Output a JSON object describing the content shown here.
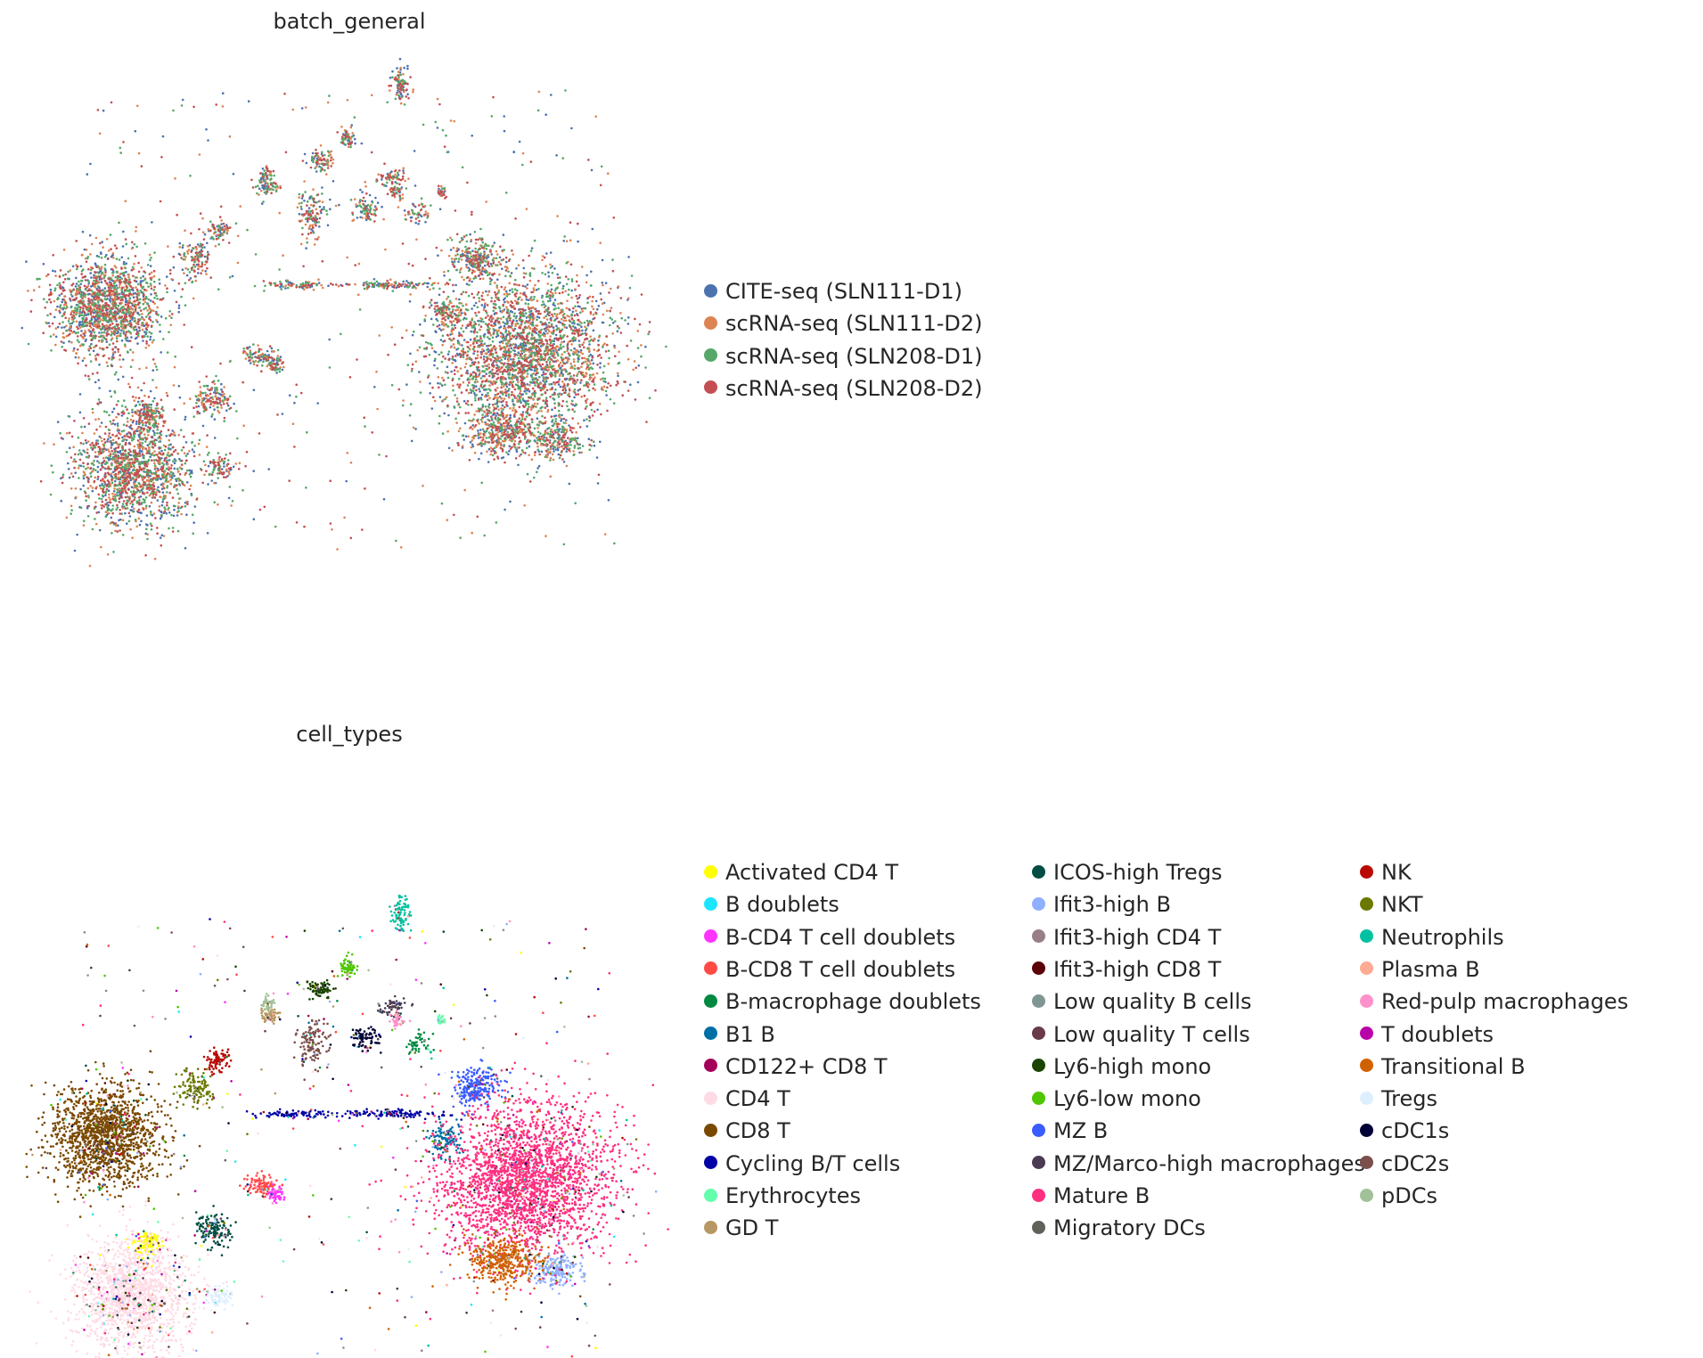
{
  "chart_data": [
    {
      "type": "scatter",
      "title": "batch_general",
      "xlabel": "",
      "ylabel": "",
      "grid": false,
      "axes_visible": false,
      "legend_placement": "right",
      "series": [
        {
          "name": "CITE-seq (SLN111-D1)",
          "color": "#4c72b0"
        },
        {
          "name": "scRNA-seq (SLN111-D2)",
          "color": "#dd8452"
        },
        {
          "name": "scRNA-seq (SLN208-D1)",
          "color": "#55a868"
        },
        {
          "name": "scRNA-seq (SLN208-D2)",
          "color": "#c44e52"
        }
      ]
    },
    {
      "type": "scatter",
      "title": "cell_types",
      "xlabel": "",
      "ylabel": "",
      "grid": false,
      "axes_visible": false,
      "legend_placement": "right",
      "series": [
        {
          "name": "Activated CD4 T",
          "color": "#ffff00"
        },
        {
          "name": "B doublets",
          "color": "#1ce6ff"
        },
        {
          "name": "B-CD4 T cell doublets",
          "color": "#ff34ff"
        },
        {
          "name": "B-CD8 T cell doublets",
          "color": "#ff4a46"
        },
        {
          "name": "B-macrophage doublets",
          "color": "#008941"
        },
        {
          "name": "B1 B",
          "color": "#006fa6"
        },
        {
          "name": "CD122+ CD8 T",
          "color": "#a30059"
        },
        {
          "name": "CD4 T",
          "color": "#ffdbe5"
        },
        {
          "name": "CD8 T",
          "color": "#7a4900"
        },
        {
          "name": "Cycling B/T cells",
          "color": "#0000a6"
        },
        {
          "name": "Erythrocytes",
          "color": "#63ffac"
        },
        {
          "name": "GD T",
          "color": "#b79762"
        },
        {
          "name": "ICOS-high Tregs",
          "color": "#004d43"
        },
        {
          "name": "Ifit3-high B",
          "color": "#8fb0ff"
        },
        {
          "name": "Ifit3-high CD4 T",
          "color": "#997d87"
        },
        {
          "name": "Ifit3-high CD8 T",
          "color": "#5a0007"
        },
        {
          "name": "Low quality B cells",
          "color": "#809693"
        },
        {
          "name": "Low quality T cells",
          "color": "#6a3a4c"
        },
        {
          "name": "Ly6-high mono",
          "color": "#1b4400"
        },
        {
          "name": "Ly6-low mono",
          "color": "#4fc601"
        },
        {
          "name": "MZ B",
          "color": "#3b5dff"
        },
        {
          "name": "MZ/Marco-high macrophages",
          "color": "#4a3b53"
        },
        {
          "name": "Mature B",
          "color": "#ff2f80"
        },
        {
          "name": "Migratory DCs",
          "color": "#61615a"
        },
        {
          "name": "NK",
          "color": "#ba0900"
        },
        {
          "name": "NKT",
          "color": "#6b7900"
        },
        {
          "name": "Neutrophils",
          "color": "#00c2a0"
        },
        {
          "name": "Plasma B",
          "color": "#ffaa92"
        },
        {
          "name": "Red-pulp macrophages",
          "color": "#ff90c9"
        },
        {
          "name": "T doublets",
          "color": "#b903aa"
        },
        {
          "name": "Transitional B",
          "color": "#d16100"
        },
        {
          "name": "Tregs",
          "color": "#ddefff"
        },
        {
          "name": "cDC1s",
          "color": "#000035"
        },
        {
          "name": "cDC2s",
          "color": "#7b4f4b"
        },
        {
          "name": "pDCs",
          "color": "#a1c299"
        }
      ]
    }
  ]
}
